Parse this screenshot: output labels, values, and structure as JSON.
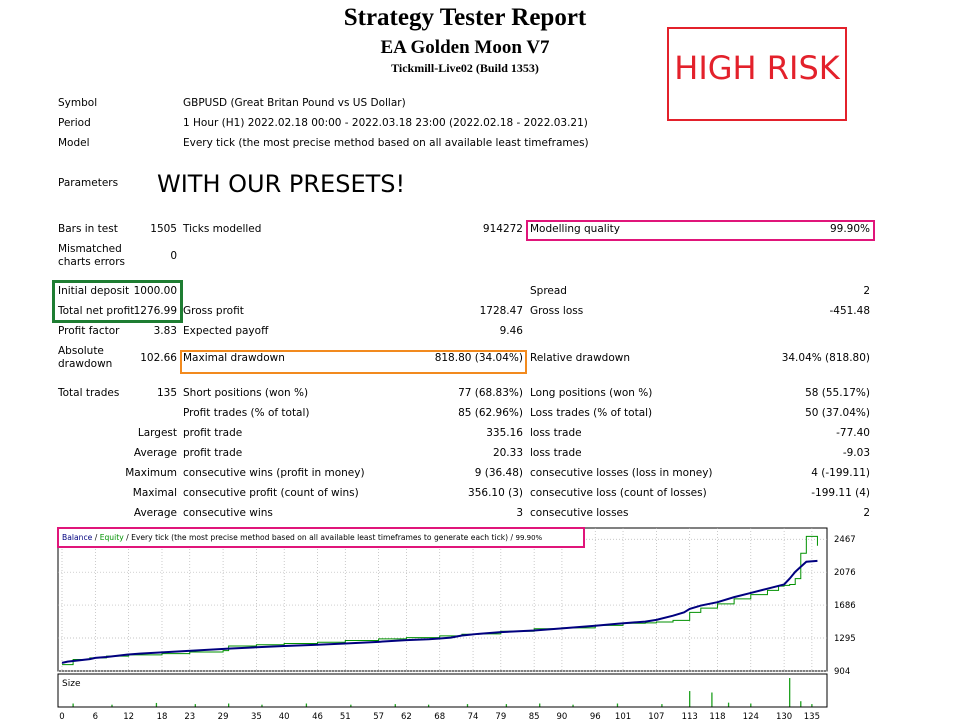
{
  "header": {
    "title": "Strategy Tester Report",
    "ea_name": "EA Golden Moon V7",
    "server": "Tickmill-Live02 (Build 1353)"
  },
  "annotations": {
    "high_risk": "HIGH RISK",
    "presets": "WITH OUR PRESETS!",
    "colors": {
      "red": "#e3212b",
      "magenta": "#e0157a",
      "green": "#1e7d32",
      "orange": "#f28a1e"
    }
  },
  "info": {
    "symbol_label": "Symbol",
    "symbol_value": "GBPUSD (Great Britan Pound vs US Dollar)",
    "period_label": "Period",
    "period_value": "1 Hour (H1) 2022.02.18 00:00 - 2022.03.18 23:00 (2022.02.18 - 2022.03.21)",
    "model_label": "Model",
    "model_value": "Every tick (the most precise method based on all available least timeframes)",
    "parameters_label": "Parameters"
  },
  "stats": {
    "bars_label": "Bars in test",
    "bars_value": "1505",
    "ticks_label": "Ticks modelled",
    "ticks_value": "914272",
    "quality_label": "Modelling quality",
    "quality_value": "99.90%",
    "mismatch_label_1": "Mismatched",
    "mismatch_label_2": "charts errors",
    "mismatch_value": "0",
    "deposit_label": "Initial deposit",
    "deposit_value": "1000.00",
    "spread_label": "Spread",
    "spread_value": "2",
    "net_label": "Total net profit",
    "net_value": "1276.99",
    "gross_profit_label": "Gross profit",
    "gross_profit_value": "1728.47",
    "gross_loss_label": "Gross loss",
    "gross_loss_value": "-451.48",
    "pf_label": "Profit factor",
    "pf_value": "3.83",
    "payoff_label": "Expected payoff",
    "payoff_value": "9.46",
    "abs_dd_label_1": "Absolute",
    "abs_dd_label_2": "drawdown",
    "abs_dd_value": "102.66",
    "max_dd_label": "Maximal drawdown",
    "max_dd_value": "818.80 (34.04%)",
    "rel_dd_label": "Relative drawdown",
    "rel_dd_value": "34.04% (818.80)",
    "trades_label": "Total trades",
    "trades_value": "135",
    "short_label": "Short positions (won %)",
    "short_value": "77 (68.83%)",
    "long_label": "Long positions (won %)",
    "long_value": "58 (55.17%)",
    "profit_trades_label": "Profit trades (% of total)",
    "profit_trades_value": "85 (62.96%)",
    "loss_trades_label": "Loss trades (% of total)",
    "loss_trades_value": "50 (37.04%)",
    "largest_label": "Largest",
    "largest_profit_label": "profit trade",
    "largest_profit_value": "335.16",
    "largest_loss_label": "loss trade",
    "largest_loss_value": "-77.40",
    "average_label": "Average",
    "average_profit_label": "profit trade",
    "average_profit_value": "20.33",
    "average_loss_label": "loss trade",
    "average_loss_value": "-9.03",
    "maximum_label": "Maximum",
    "max_wins_label": "consecutive wins (profit in money)",
    "max_wins_value": "9 (36.48)",
    "max_losses_label": "consecutive losses (loss in money)",
    "max_losses_value": "4 (-199.11)",
    "maximal_label": "Maximal",
    "maximal_profit_label": "consecutive profit (count of wins)",
    "maximal_profit_value": "356.10 (3)",
    "maximal_loss_label": "consecutive loss (count of losses)",
    "maximal_loss_value": "-199.11 (4)",
    "average2_label": "Average",
    "avg_wins_label": "consecutive wins",
    "avg_wins_value": "3",
    "avg_losses_label": "consecutive losses",
    "avg_losses_value": "2"
  },
  "chart_data": {
    "type": "line",
    "legend": {
      "balance": "Balance",
      "sep1": " / ",
      "equity": "Equity",
      "sep2": " / ",
      "model": "Every tick (the most precise method based on all available least timeframes to generate each tick)",
      "sep3": " / ",
      "quality": "99.90%"
    },
    "colors": {
      "balance": "#00007f",
      "equity": "#009100",
      "size": "#1ea01e",
      "grid": "#b4b4b4"
    },
    "ylim": [
      904,
      2600
    ],
    "y_ticks": [
      904,
      1295,
      1686,
      2076,
      2467
    ],
    "x_ticks": [
      0,
      6,
      12,
      18,
      23,
      29,
      35,
      40,
      46,
      51,
      57,
      62,
      68,
      74,
      79,
      85,
      90,
      96,
      101,
      107,
      113,
      118,
      124,
      130,
      135
    ],
    "xlim": [
      0,
      137
    ],
    "size_label": "Size",
    "series": [
      {
        "name": "Balance",
        "x": [
          0,
          1,
          3,
          5,
          6,
          8,
          10,
          12,
          14,
          18,
          22,
          26,
          30,
          35,
          40,
          46,
          51,
          57,
          62,
          66,
          68,
          70,
          72,
          75,
          79,
          85,
          90,
          94,
          96,
          100,
          105,
          107,
          110,
          112,
          113,
          115,
          118,
          121,
          124,
          127,
          130,
          131,
          132,
          133,
          134,
          136
        ],
        "y": [
          1000,
          1015,
          1030,
          1045,
          1060,
          1070,
          1085,
          1100,
          1110,
          1125,
          1140,
          1155,
          1170,
          1185,
          1200,
          1215,
          1230,
          1250,
          1270,
          1280,
          1290,
          1300,
          1325,
          1345,
          1365,
          1385,
          1410,
          1430,
          1440,
          1465,
          1490,
          1510,
          1560,
          1600,
          1640,
          1680,
          1720,
          1780,
          1830,
          1880,
          1930,
          2000,
          2080,
          2140,
          2200,
          2210
        ]
      },
      {
        "name": "Equity",
        "x": [
          0,
          2,
          5,
          8,
          12,
          18,
          23,
          29,
          30,
          35,
          40,
          46,
          51,
          57,
          62,
          68,
          72,
          75,
          79,
          85,
          90,
          96,
          101,
          105,
          107,
          110,
          113,
          115,
          118,
          121,
          124,
          127,
          129,
          130,
          131,
          132,
          133,
          134,
          136
        ],
        "y": [
          980,
          1040,
          1060,
          1080,
          1095,
          1110,
          1130,
          1145,
          1200,
          1215,
          1230,
          1245,
          1265,
          1285,
          1300,
          1320,
          1340,
          1345,
          1375,
          1405,
          1415,
          1445,
          1470,
          1475,
          1485,
          1505,
          1600,
          1650,
          1700,
          1760,
          1810,
          1860,
          1910,
          1920,
          1930,
          2000,
          2300,
          2500,
          2390
        ]
      }
    ],
    "size_bars": {
      "x": [
        2,
        9,
        17,
        24,
        30,
        36,
        44,
        52,
        60,
        66,
        73,
        80,
        86,
        92,
        100,
        108,
        113,
        117,
        120,
        124,
        131,
        133,
        135
      ],
      "h": [
        0.12,
        0.08,
        0.14,
        0.1,
        0.12,
        0.08,
        0.12,
        0.08,
        0.1,
        0.08,
        0.1,
        0.1,
        0.12,
        0.08,
        0.12,
        0.1,
        0.55,
        0.5,
        0.15,
        0.12,
        1.0,
        0.2,
        0.1
      ]
    }
  }
}
